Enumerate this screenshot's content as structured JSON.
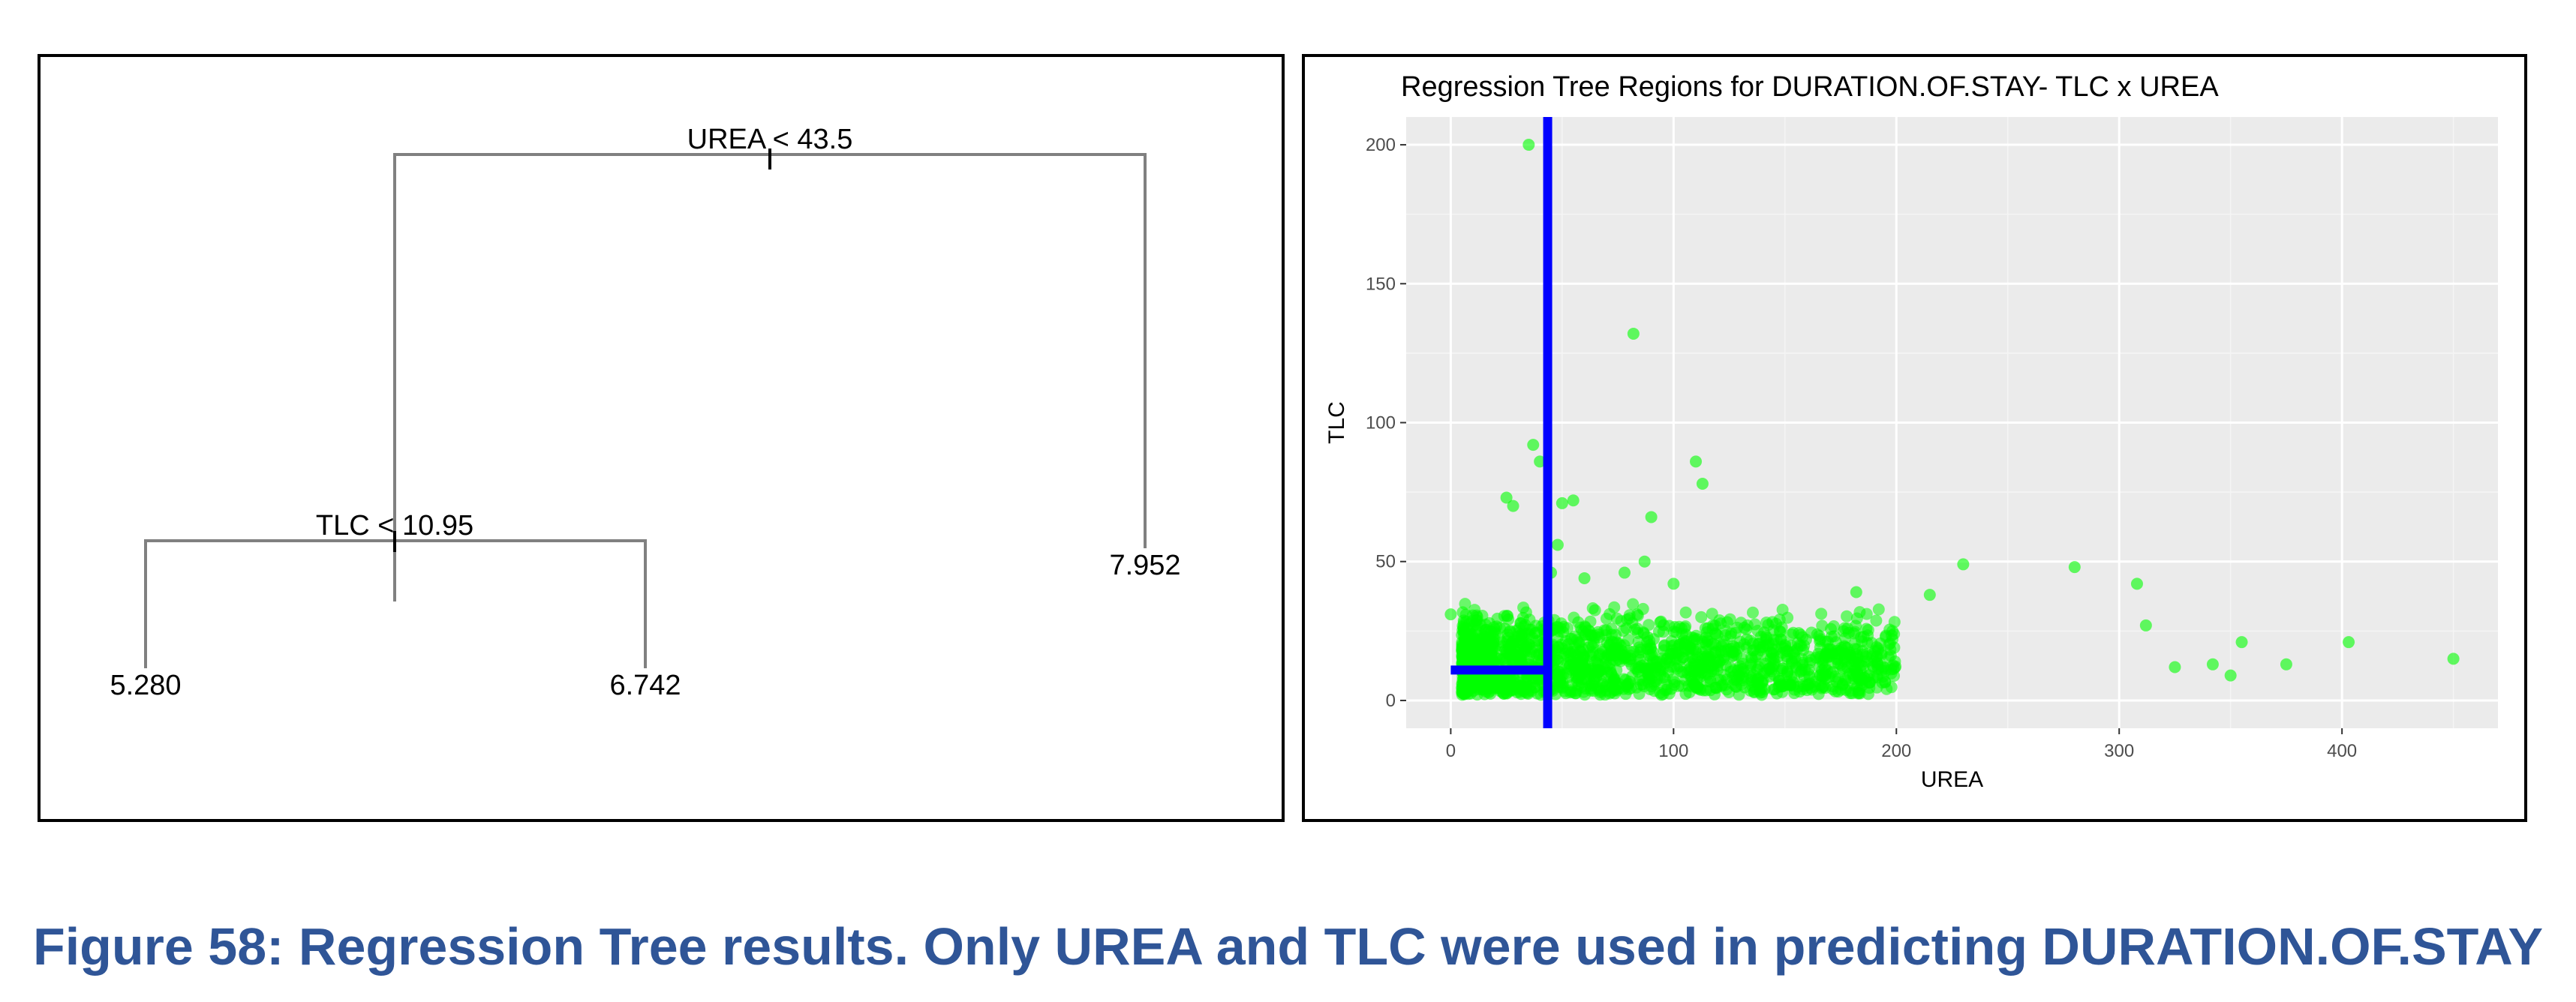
{
  "caption": "Figure 58: Regression Tree results. Only UREA and TLC were used in predicting DURATION.OF.STAY",
  "chart_data": [
    {
      "type": "tree",
      "root_split": "UREA < 43.5",
      "left_split": "TLC < 10.95",
      "leaves": [
        "5.280",
        "6.742",
        "7.952"
      ],
      "line_color": "#808080"
    },
    {
      "type": "scatter",
      "title": "Regression Tree Regions for DURATION.OF.STAY- TLC x UREA",
      "xlabel": "UREA",
      "ylabel": "TLC",
      "xlim": [
        -20,
        470
      ],
      "ylim": [
        -10,
        210
      ],
      "xticks": [
        0,
        100,
        200,
        300,
        400
      ],
      "yticks": [
        0,
        50,
        100,
        150,
        200
      ],
      "grid": true,
      "background": "#ebebeb",
      "point_color": "#00ff00",
      "partition_color": "#0000ff",
      "partitions": [
        {
          "orientation": "vertical",
          "x": 43.5,
          "y_from": -10,
          "y_to": 210
        },
        {
          "orientation": "horizontal",
          "y": 10.95,
          "x_from": 0,
          "x_to": 43.5
        }
      ],
      "outliers": [
        [
          35,
          200
        ],
        [
          82,
          132
        ],
        [
          37,
          92
        ],
        [
          40,
          86
        ],
        [
          110,
          86
        ],
        [
          113,
          78
        ],
        [
          25,
          73
        ],
        [
          28,
          70
        ],
        [
          50,
          71
        ],
        [
          55,
          72
        ],
        [
          90,
          66
        ],
        [
          48,
          56
        ],
        [
          87,
          50
        ],
        [
          230,
          49
        ],
        [
          280,
          48
        ],
        [
          308,
          42
        ],
        [
          45,
          46
        ],
        [
          60,
          44
        ],
        [
          78,
          46
        ],
        [
          100,
          42
        ],
        [
          215,
          38
        ],
        [
          182,
          39
        ],
        [
          312,
          27
        ],
        [
          355,
          21
        ],
        [
          403,
          21
        ],
        [
          450,
          15
        ],
        [
          375,
          13
        ],
        [
          342,
          13
        ],
        [
          350,
          9
        ],
        [
          325,
          12
        ],
        [
          0,
          31
        ]
      ],
      "dense_region": {
        "count": 1700,
        "x_range": [
          5,
          200
        ],
        "y_range": [
          0,
          42
        ],
        "mean_y": 14
      }
    }
  ]
}
